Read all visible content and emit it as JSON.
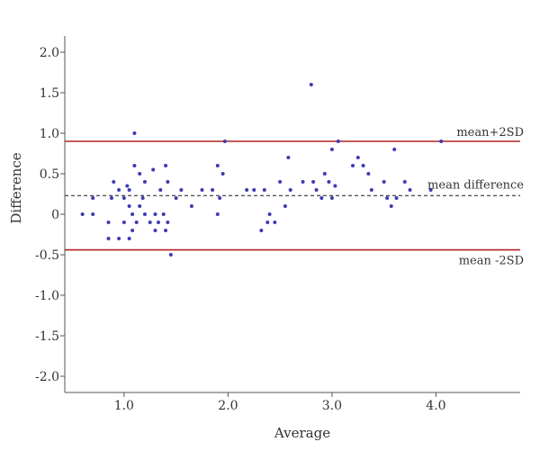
{
  "chart_data": {
    "type": "scatter",
    "title": "",
    "xlabel": "Average",
    "ylabel": "Difference",
    "xlim": [
      0.43,
      4.81
    ],
    "ylim": [
      -2.2,
      2.2
    ],
    "x_ticks": [
      {
        "value": 1.0,
        "label": "1.0"
      },
      {
        "value": 2.0,
        "label": "2.0"
      },
      {
        "value": 3.0,
        "label": "3.0"
      },
      {
        "value": 4.0,
        "label": "4.0"
      }
    ],
    "y_ticks": [
      {
        "value": 2.0,
        "label": "2.0"
      },
      {
        "value": 1.5,
        "label": "1.5"
      },
      {
        "value": 1.0,
        "label": "1.0"
      },
      {
        "value": 0.5,
        "label": "0.5"
      },
      {
        "value": 0.0,
        "label": "0"
      },
      {
        "value": -0.5,
        "label": "-0.5"
      },
      {
        "value": -1.0,
        "label": "-1.0"
      },
      {
        "value": -1.5,
        "label": "-1.5"
      },
      {
        "value": -2.0,
        "label": "-2.0"
      }
    ],
    "grid": false,
    "reference_lines": [
      {
        "label": "mean+2SD",
        "y": 0.9,
        "style": "solid",
        "color": "#b22222"
      },
      {
        "label": "mean difference",
        "y": 0.23,
        "style": "dashed",
        "color": "#333333"
      },
      {
        "label": "mean -2SD",
        "y": -0.44,
        "style": "solid",
        "color": "#b22222"
      }
    ],
    "point_color": "#3c3cb4",
    "points": [
      {
        "x": 0.6,
        "y": 0.0
      },
      {
        "x": 0.7,
        "y": 0.0
      },
      {
        "x": 0.7,
        "y": 0.2
      },
      {
        "x": 0.85,
        "y": -0.3
      },
      {
        "x": 0.85,
        "y": -0.1
      },
      {
        "x": 0.88,
        "y": 0.2
      },
      {
        "x": 0.9,
        "y": 0.4
      },
      {
        "x": 0.95,
        "y": 0.3
      },
      {
        "x": 0.95,
        "y": -0.3
      },
      {
        "x": 1.0,
        "y": 0.2
      },
      {
        "x": 1.0,
        "y": -0.1
      },
      {
        "x": 1.03,
        "y": 0.35
      },
      {
        "x": 1.05,
        "y": 0.1
      },
      {
        "x": 1.05,
        "y": -0.3
      },
      {
        "x": 1.05,
        "y": 0.3
      },
      {
        "x": 1.08,
        "y": 0.0
      },
      {
        "x": 1.08,
        "y": -0.2
      },
      {
        "x": 1.1,
        "y": 0.6
      },
      {
        "x": 1.1,
        "y": 1.0
      },
      {
        "x": 1.12,
        "y": -0.1
      },
      {
        "x": 1.15,
        "y": 0.5
      },
      {
        "x": 1.15,
        "y": 0.1
      },
      {
        "x": 1.18,
        "y": 0.2
      },
      {
        "x": 1.2,
        "y": 0.4
      },
      {
        "x": 1.2,
        "y": 0.0
      },
      {
        "x": 1.25,
        "y": -0.1
      },
      {
        "x": 1.28,
        "y": 0.55
      },
      {
        "x": 1.3,
        "y": 0.0
      },
      {
        "x": 1.3,
        "y": -0.2
      },
      {
        "x": 1.33,
        "y": -0.1
      },
      {
        "x": 1.35,
        "y": 0.3
      },
      {
        "x": 1.38,
        "y": 0.0
      },
      {
        "x": 1.4,
        "y": -0.2
      },
      {
        "x": 1.4,
        "y": 0.6
      },
      {
        "x": 1.42,
        "y": 0.4
      },
      {
        "x": 1.42,
        "y": -0.1
      },
      {
        "x": 1.45,
        "y": -0.5
      },
      {
        "x": 1.5,
        "y": 0.2
      },
      {
        "x": 1.55,
        "y": 0.3
      },
      {
        "x": 1.65,
        "y": 0.1
      },
      {
        "x": 1.75,
        "y": 0.3
      },
      {
        "x": 1.85,
        "y": 0.3
      },
      {
        "x": 1.9,
        "y": 0.6
      },
      {
        "x": 1.9,
        "y": 0.0
      },
      {
        "x": 1.92,
        "y": 0.2
      },
      {
        "x": 1.95,
        "y": 0.5
      },
      {
        "x": 1.97,
        "y": 0.9
      },
      {
        "x": 2.18,
        "y": 0.3
      },
      {
        "x": 2.25,
        "y": 0.3
      },
      {
        "x": 2.32,
        "y": -0.2
      },
      {
        "x": 2.35,
        "y": 0.3
      },
      {
        "x": 2.38,
        "y": -0.1
      },
      {
        "x": 2.4,
        "y": 0.0
      },
      {
        "x": 2.45,
        "y": -0.1
      },
      {
        "x": 2.5,
        "y": 0.4
      },
      {
        "x": 2.55,
        "y": 0.1
      },
      {
        "x": 2.58,
        "y": 0.7
      },
      {
        "x": 2.6,
        "y": 0.3
      },
      {
        "x": 2.72,
        "y": 0.4
      },
      {
        "x": 2.8,
        "y": 1.6
      },
      {
        "x": 2.82,
        "y": 0.4
      },
      {
        "x": 2.85,
        "y": 0.3
      },
      {
        "x": 2.9,
        "y": 0.2
      },
      {
        "x": 2.93,
        "y": 0.5
      },
      {
        "x": 2.97,
        "y": 0.4
      },
      {
        "x": 3.0,
        "y": 0.8
      },
      {
        "x": 3.0,
        "y": 0.2
      },
      {
        "x": 3.03,
        "y": 0.35
      },
      {
        "x": 3.06,
        "y": 0.9
      },
      {
        "x": 3.2,
        "y": 0.6
      },
      {
        "x": 3.25,
        "y": 0.7
      },
      {
        "x": 3.3,
        "y": 0.6
      },
      {
        "x": 3.35,
        "y": 0.5
      },
      {
        "x": 3.38,
        "y": 0.3
      },
      {
        "x": 3.5,
        "y": 0.4
      },
      {
        "x": 3.53,
        "y": 0.2
      },
      {
        "x": 3.57,
        "y": 0.1
      },
      {
        "x": 3.6,
        "y": 0.8
      },
      {
        "x": 3.62,
        "y": 0.2
      },
      {
        "x": 3.7,
        "y": 0.4
      },
      {
        "x": 3.75,
        "y": 0.3
      },
      {
        "x": 3.95,
        "y": 0.3
      },
      {
        "x": 4.05,
        "y": 0.9
      }
    ]
  }
}
